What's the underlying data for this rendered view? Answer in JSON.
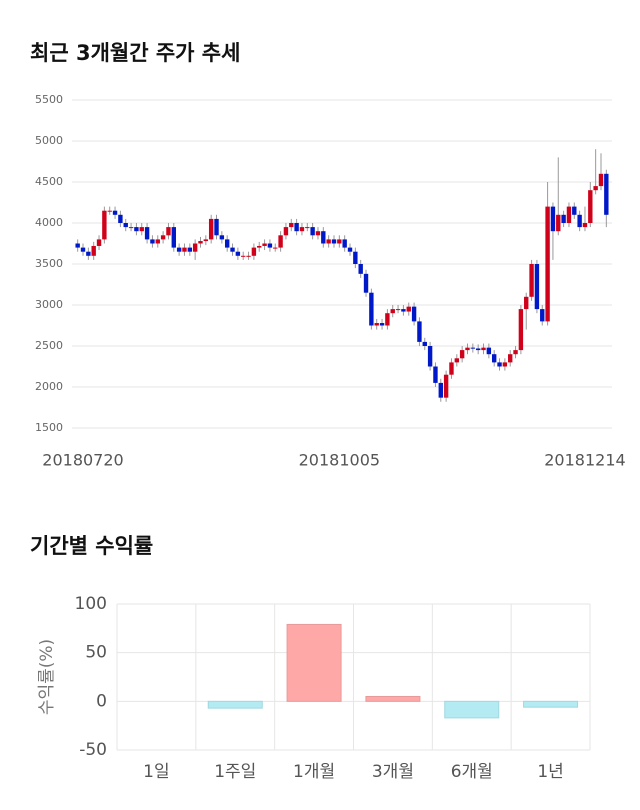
{
  "chart_data": [
    {
      "type": "candlestick",
      "title": "최근 3개월간 주가 추세",
      "categories": [
        null,
        "20180720",
        null,
        null,
        null,
        null,
        null,
        null,
        null,
        null,
        null,
        null,
        null,
        null,
        null,
        null,
        null,
        null,
        null,
        null,
        null,
        null,
        null,
        null,
        null,
        null,
        null,
        null,
        null,
        null,
        null,
        null,
        null,
        null,
        null,
        null,
        null,
        null,
        null,
        null,
        null,
        null,
        null,
        null,
        null,
        null,
        null,
        null,
        null,
        "20181005",
        null,
        null,
        null,
        null,
        null,
        null,
        null,
        null,
        null,
        null,
        null,
        null,
        null,
        null,
        null,
        null,
        null,
        null,
        null,
        null,
        null,
        null,
        null,
        null,
        null,
        null,
        null,
        null,
        null,
        null,
        null,
        null,
        null,
        null,
        null,
        null,
        null,
        null,
        null,
        null,
        null,
        null,
        null,
        null,
        null,
        "20181214",
        null,
        null,
        null,
        null
      ],
      "open": [
        3750,
        3700,
        3650,
        3600,
        3720,
        3800,
        4150,
        4150,
        4100,
        4000,
        3950,
        3950,
        3900,
        3950,
        3800,
        3750,
        3800,
        3850,
        3950,
        3700,
        3650,
        3700,
        3650,
        3750,
        3780,
        3800,
        4050,
        3850,
        3800,
        3700,
        3650,
        3600,
        3600,
        3600,
        3700,
        3720,
        3750,
        3700,
        3700,
        3850,
        3950,
        4000,
        3900,
        3950,
        3950,
        3850,
        3900,
        3750,
        3800,
        3750,
        3800,
        3700,
        3650,
        3500,
        3380,
        3150,
        2750,
        2780,
        2750,
        2900,
        2950,
        2950,
        2920,
        2980,
        2800,
        2550,
        2500,
        2250,
        2050,
        1870,
        2150,
        2300,
        2350,
        2450,
        2480,
        2470,
        2450,
        2480,
        2400,
        2300,
        2250,
        2300,
        2400,
        2450,
        2950,
        3100,
        3500,
        2950,
        2800,
        4200,
        3900,
        4100,
        4000,
        4200,
        4100,
        3950,
        4000,
        4400,
        4450,
        4600
      ],
      "high": [
        3800,
        3750,
        3700,
        3770,
        3850,
        4200,
        4200,
        4200,
        4150,
        4050,
        4000,
        4000,
        4000,
        4000,
        3850,
        3850,
        3900,
        4000,
        4000,
        3750,
        3750,
        3750,
        3800,
        3830,
        3850,
        4100,
        4100,
        3900,
        3850,
        3750,
        3700,
        3650,
        3650,
        3750,
        3770,
        3800,
        3800,
        3750,
        3900,
        4000,
        4050,
        4050,
        4000,
        4000,
        4000,
        3950,
        3950,
        3850,
        3850,
        3850,
        3850,
        3750,
        3700,
        3550,
        3430,
        3200,
        2830,
        2830,
        2950,
        3000,
        3000,
        3000,
        3030,
        3030,
        2850,
        2600,
        2550,
        2300,
        2100,
        2200,
        2350,
        2400,
        2500,
        2530,
        2530,
        2520,
        2530,
        2530,
        2450,
        2350,
        2350,
        2450,
        2500,
        3000,
        3150,
        3550,
        3550,
        3000,
        4500,
        4250,
        4800,
        4150,
        4250,
        4250,
        4150,
        4200,
        4500,
        4900,
        4850,
        4650
      ],
      "low": [
        3650,
        3600,
        3550,
        3550,
        3670,
        3750,
        4100,
        4050,
        3950,
        3900,
        3900,
        3850,
        3850,
        3750,
        3700,
        3700,
        3750,
        3800,
        3650,
        3600,
        3600,
        3600,
        3550,
        3700,
        3730,
        3750,
        3800,
        3750,
        3650,
        3600,
        3550,
        3550,
        3550,
        3550,
        3650,
        3670,
        3650,
        3650,
        3650,
        3800,
        3900,
        3850,
        3850,
        3900,
        3800,
        3800,
        3700,
        3700,
        3700,
        3700,
        3650,
        3600,
        3450,
        3330,
        3100,
        2700,
        2700,
        2700,
        2700,
        2850,
        2900,
        2870,
        2870,
        2750,
        2500,
        2450,
        2200,
        2000,
        1820,
        1820,
        2100,
        2250,
        2300,
        2400,
        2420,
        2400,
        2400,
        2350,
        2250,
        2200,
        2200,
        2250,
        2350,
        2400,
        2700,
        3050,
        2900,
        2750,
        2750,
        3550,
        3850,
        3950,
        3950,
        4050,
        3900,
        3900,
        3950,
        4350,
        4400,
        3950
      ],
      "close": [
        3700,
        3650,
        3600,
        3720,
        3800,
        4150,
        4150,
        4100,
        4000,
        3950,
        3950,
        3900,
        3950,
        3800,
        3750,
        3800,
        3850,
        3950,
        3700,
        3650,
        3700,
        3650,
        3750,
        3780,
        3800,
        4050,
        3850,
        3800,
        3700,
        3650,
        3600,
        3600,
        3600,
        3700,
        3720,
        3750,
        3700,
        3700,
        3850,
        3950,
        4000,
        3900,
        3950,
        3950,
        3850,
        3900,
        3750,
        3800,
        3750,
        3800,
        3700,
        3650,
        3500,
        3380,
        3150,
        2750,
        2780,
        2750,
        2900,
        2950,
        2950,
        2920,
        2980,
        2800,
        2550,
        2500,
        2250,
        2050,
        1870,
        2150,
        2300,
        2350,
        2450,
        2480,
        2470,
        2450,
        2480,
        2400,
        2300,
        2250,
        2300,
        2400,
        2450,
        2950,
        3100,
        3500,
        2950,
        2800,
        4200,
        3900,
        4100,
        4000,
        4200,
        4100,
        3950,
        4000,
        4400,
        4450,
        4600,
        4100
      ],
      "up_color": "#d0021b",
      "down_color": "#0019c8",
      "ylim": [
        1500,
        5500
      ],
      "yticks": [
        1500,
        2000,
        2500,
        3000,
        3500,
        4000,
        4500,
        5000,
        5500
      ],
      "grid": true
    },
    {
      "type": "bar",
      "title": "기간별 수익률",
      "y_label": "수익률(%)",
      "categories": [
        "1일",
        "1주일",
        "1개월",
        "3개월",
        "6개월",
        "1년"
      ],
      "values": [
        0,
        -7,
        79,
        5,
        -17,
        -6
      ],
      "positive_color": "#ffa8a8",
      "negative_color": "#b4ebf3",
      "ylim": [
        -50,
        100
      ],
      "yticks": [
        -50,
        0,
        50,
        100
      ],
      "grid": true
    }
  ]
}
